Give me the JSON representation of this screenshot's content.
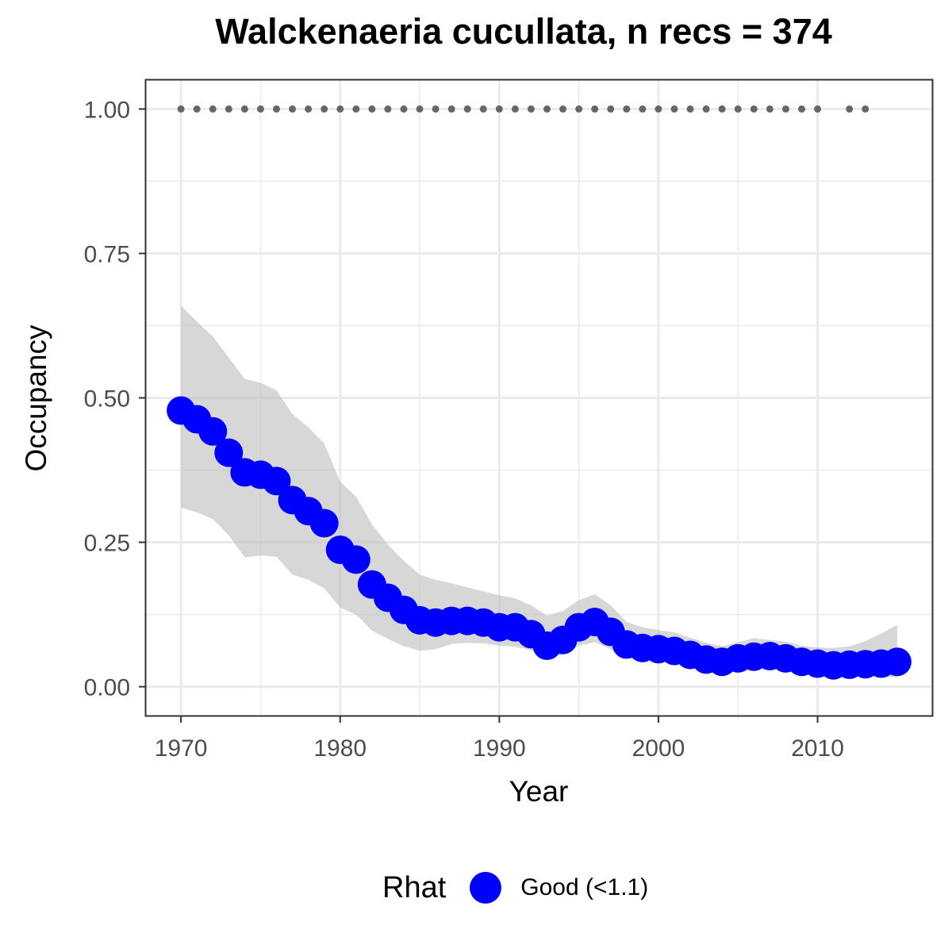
{
  "chart_data": {
    "type": "line",
    "title": "Walckenaeria cucullata, n recs = 374",
    "xlabel": "Year",
    "ylabel": "Occupancy",
    "xlim": [
      1967.8,
      2017.2
    ],
    "ylim": [
      -0.05,
      1.05
    ],
    "x_ticks": [
      1970,
      1980,
      1990,
      2000,
      2010
    ],
    "y_ticks": [
      0.0,
      0.25,
      0.5,
      0.75,
      1.0
    ],
    "y_tick_labels": [
      "0.00",
      "0.25",
      "0.50",
      "0.75",
      "1.00"
    ],
    "grid": true,
    "legend_position": "bottom",
    "legend": {
      "title": "Rhat",
      "label": "Good (<1.1)"
    },
    "colors": {
      "point": "#0000ff",
      "ribbon": "#bebebe",
      "record_dots": "#666666",
      "grid": "#ebebeb",
      "panel_border": "#333333"
    },
    "series": [
      {
        "name": "Occupancy mean",
        "x": [
          1970,
          1971,
          1972,
          1973,
          1974,
          1975,
          1976,
          1977,
          1978,
          1979,
          1980,
          1981,
          1982,
          1983,
          1984,
          1985,
          1986,
          1987,
          1988,
          1989,
          1990,
          1991,
          1992,
          1993,
          1994,
          1995,
          1996,
          1997,
          1998,
          1999,
          2000,
          2001,
          2002,
          2003,
          2004,
          2005,
          2006,
          2007,
          2008,
          2009,
          2010,
          2011,
          2012,
          2013,
          2014,
          2015
        ],
        "y": [
          0.478,
          0.463,
          0.442,
          0.405,
          0.371,
          0.367,
          0.356,
          0.323,
          0.304,
          0.283,
          0.237,
          0.22,
          0.177,
          0.154,
          0.133,
          0.115,
          0.111,
          0.114,
          0.114,
          0.111,
          0.103,
          0.103,
          0.091,
          0.071,
          0.081,
          0.103,
          0.112,
          0.095,
          0.073,
          0.067,
          0.065,
          0.062,
          0.055,
          0.047,
          0.043,
          0.049,
          0.052,
          0.053,
          0.049,
          0.043,
          0.04,
          0.037,
          0.038,
          0.039,
          0.04,
          0.043
        ]
      },
      {
        "name": "Credible interval",
        "x": [
          1970,
          1971,
          1972,
          1973,
          1974,
          1975,
          1976,
          1977,
          1978,
          1979,
          1980,
          1981,
          1982,
          1983,
          1984,
          1985,
          1986,
          1987,
          1988,
          1989,
          1990,
          1991,
          1992,
          1993,
          1994,
          1995,
          1996,
          1997,
          1998,
          1999,
          2000,
          2001,
          2002,
          2003,
          2004,
          2005,
          2006,
          2007,
          2008,
          2009,
          2010,
          2011,
          2012,
          2013,
          2014,
          2015
        ],
        "lower": [
          0.31,
          0.302,
          0.29,
          0.262,
          0.224,
          0.227,
          0.225,
          0.194,
          0.185,
          0.17,
          0.137,
          0.125,
          0.097,
          0.083,
          0.07,
          0.062,
          0.065,
          0.074,
          0.076,
          0.075,
          0.071,
          0.069,
          0.063,
          0.05,
          0.056,
          0.071,
          0.077,
          0.065,
          0.052,
          0.048,
          0.047,
          0.044,
          0.039,
          0.032,
          0.029,
          0.034,
          0.037,
          0.037,
          0.034,
          0.029,
          0.025,
          0.021,
          0.019,
          0.018,
          0.017,
          0.016
        ],
        "upper": [
          0.66,
          0.632,
          0.606,
          0.57,
          0.533,
          0.526,
          0.513,
          0.472,
          0.449,
          0.421,
          0.355,
          0.329,
          0.281,
          0.246,
          0.218,
          0.194,
          0.185,
          0.179,
          0.172,
          0.165,
          0.158,
          0.153,
          0.141,
          0.123,
          0.131,
          0.15,
          0.16,
          0.141,
          0.112,
          0.103,
          0.098,
          0.094,
          0.085,
          0.076,
          0.07,
          0.077,
          0.084,
          0.081,
          0.078,
          0.071,
          0.068,
          0.067,
          0.07,
          0.079,
          0.092,
          0.107
        ]
      },
      {
        "name": "Years with records",
        "x": [
          1970,
          1971,
          1972,
          1973,
          1974,
          1975,
          1976,
          1977,
          1978,
          1979,
          1980,
          1981,
          1982,
          1983,
          1984,
          1985,
          1986,
          1987,
          1988,
          1989,
          1990,
          1991,
          1992,
          1993,
          1994,
          1995,
          1996,
          1997,
          1998,
          1999,
          2000,
          2001,
          2002,
          2003,
          2004,
          2005,
          2006,
          2007,
          2008,
          2009,
          2010,
          2012,
          2013
        ],
        "y": [
          1,
          1,
          1,
          1,
          1,
          1,
          1,
          1,
          1,
          1,
          1,
          1,
          1,
          1,
          1,
          1,
          1,
          1,
          1,
          1,
          1,
          1,
          1,
          1,
          1,
          1,
          1,
          1,
          1,
          1,
          1,
          1,
          1,
          1,
          1,
          1,
          1,
          1,
          1,
          1,
          1,
          1,
          1
        ]
      }
    ]
  }
}
